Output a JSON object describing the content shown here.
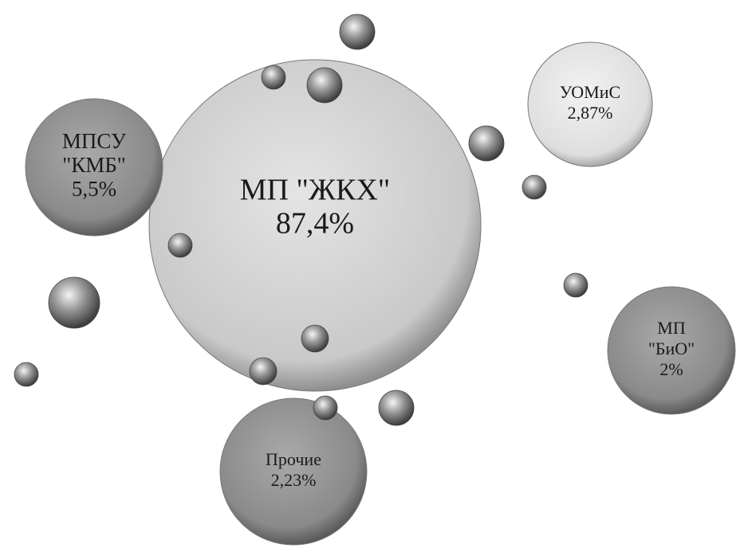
{
  "nodes": [
    {
      "label": [
        "МП \"ЖКХ\""
      ],
      "value": "87,4%"
    },
    {
      "label": [
        "МПСУ",
        "\"КМБ\""
      ],
      "value": "5,5%"
    },
    {
      "label": [
        "УОМиС"
      ],
      "value": "2,87%"
    },
    {
      "label": [
        "МП",
        "\"БиО\""
      ],
      "value": "2%"
    },
    {
      "label": [
        "Прочие"
      ],
      "value": "2,23%"
    }
  ]
}
